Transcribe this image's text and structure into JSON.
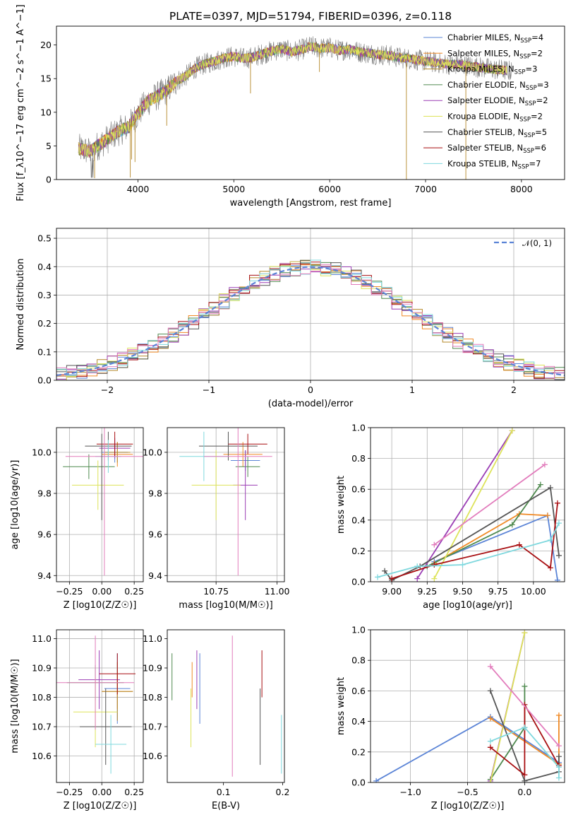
{
  "title": "PLATE=0397, MJD=51794, FIBERID=0396, z=0.118",
  "colors": {
    "chabrier_miles": "#5b84d6",
    "salpeter_miles": "#f08a26",
    "kroupa_miles": "#b5892a",
    "chabrier_elodie": "#4f8a4f",
    "salpeter_elodie": "#9b3fb5",
    "kroupa_elodie": "#dde35a",
    "chabrier_stelib": "#555555",
    "salpeter_stelib": "#a80f12",
    "kroupa_stelib": "#7fd8de",
    "pink": "#e27cbc",
    "spectrum_gray": "#777777",
    "dash": "#5b84d6"
  },
  "chart_data": [
    {
      "id": "spectrum",
      "type": "line",
      "xlabel": "wavelength [Angstrom, rest frame]",
      "ylabel": "Flux [f_λ10^−17 erg cm^−2 s^−1 A^−1]",
      "xlim": [
        3150,
        8450
      ],
      "ylim": [
        0,
        22.8
      ],
      "xticks": [
        4000,
        5000,
        6000,
        7000,
        8000
      ],
      "yticks": [
        0,
        5,
        10,
        15,
        20
      ],
      "grid": false,
      "legend": "top-right",
      "continuum": {
        "x": [
          3380,
          3500,
          3600,
          3700,
          3800,
          3900,
          4000,
          4100,
          4200,
          4300,
          4400,
          4500,
          4600,
          4700,
          4800,
          4900,
          5000,
          5100,
          5200,
          5300,
          5400,
          5500,
          5600,
          5700,
          5800,
          5900,
          6000,
          6100,
          6200,
          6300,
          6400,
          6500,
          6600,
          6700,
          6800,
          6900,
          7000,
          7100,
          7200,
          7300,
          7400,
          7500,
          7600,
          7700,
          7800,
          7900,
          8000,
          8100,
          8200
        ],
        "y": [
          4.6,
          4.2,
          5.2,
          6.2,
          7.2,
          7.8,
          9.8,
          11.6,
          12.4,
          13.2,
          14.6,
          15.4,
          16.6,
          17.2,
          17.6,
          18.1,
          18.3,
          18.0,
          18.2,
          18.7,
          19.1,
          19.4,
          19.0,
          19.3,
          19.8,
          19.5,
          19.6,
          19.2,
          19.4,
          19.0,
          18.8,
          18.6,
          18.5,
          18.2,
          18.0,
          17.8,
          17.6,
          17.4,
          17.2,
          17.1,
          17.0,
          16.8,
          16.6,
          16.4,
          16.3,
          16.1,
          15.9,
          15.8,
          15.5
        ]
      },
      "series": [
        {
          "name": "Chabrier MILES, N_SSP=4",
          "nssp": "4",
          "color_key": "chabrier_miles"
        },
        {
          "name": "Salpeter MILES, N_SSP=2",
          "nssp": "2",
          "color_key": "salpeter_miles"
        },
        {
          "name": "Kroupa MILES, N_SSP=3",
          "nssp": "3",
          "color_key": "kroupa_miles"
        },
        {
          "name": "Chabrier ELODIE, N_SSP=3",
          "nssp": "3",
          "color_key": "chabrier_elodie"
        },
        {
          "name": "Salpeter ELODIE, N_SSP=2",
          "nssp": "2",
          "color_key": "salpeter_elodie"
        },
        {
          "name": "Kroupa ELODIE, N_SSP=2",
          "nssp": "2",
          "color_key": "kroupa_elodie"
        },
        {
          "name": "Chabrier STELIB, N_SSP=5",
          "nssp": "5",
          "color_key": "chabrier_stelib"
        },
        {
          "name": "Salpeter STELIB, N_SSP=6",
          "nssp": "6",
          "color_key": "salpeter_stelib"
        },
        {
          "name": "Kroupa STELIB, N_SSP=7",
          "nssp": "7",
          "color_key": "kroupa_stelib"
        }
      ],
      "legend_labels": [
        {
          "prefix": "Chabrier MILES, N",
          "sub": "SSP",
          "suffix": "=4"
        },
        {
          "prefix": "Salpeter MILES, N",
          "sub": "SSP",
          "suffix": "=2"
        },
        {
          "prefix": "Kroupa MILES, N",
          "sub": "SSP",
          "suffix": "=3"
        },
        {
          "prefix": "Chabrier ELODIE, N",
          "sub": "SSP",
          "suffix": "=3"
        },
        {
          "prefix": "Salpeter ELODIE, N",
          "sub": "SSP",
          "suffix": "=2"
        },
        {
          "prefix": "Kroupa ELODIE, N",
          "sub": "SSP",
          "suffix": "=2"
        },
        {
          "prefix": "Chabrier STELIB, N",
          "sub": "SSP",
          "suffix": "=5"
        },
        {
          "prefix": "Salpeter STELIB, N",
          "sub": "SSP",
          "suffix": "=6"
        },
        {
          "prefix": "Kroupa STELIB, N",
          "sub": "SSP",
          "suffix": "=7"
        }
      ]
    },
    {
      "id": "residuals",
      "type": "line",
      "xlabel": "(data-model)/error",
      "ylabel": "Normed distribution",
      "xlim": [
        -2.5,
        2.5
      ],
      "ylim": [
        0,
        0.535
      ],
      "xticks": [
        -2,
        -1,
        0,
        1,
        2
      ],
      "xtick_labels": [
        "−2",
        "−1",
        "0",
        "1",
        "2"
      ],
      "yticks": [
        0.0,
        0.1,
        0.2,
        0.3,
        0.4,
        0.5
      ],
      "ytick_labels": [
        "0.0",
        "0.1",
        "0.2",
        "0.3",
        "0.4",
        "0.5"
      ],
      "grid": true,
      "legend": "top-right",
      "legend_label": "𝒩(0, 1)",
      "bin_width": 0.1
    },
    {
      "id": "age-vs-z",
      "type": "scatter",
      "xlabel": "Z [log10(Z/Z☉)]",
      "ylabel": "age [log10(age/yr)]",
      "xlim": [
        -0.35,
        0.32
      ],
      "ylim": [
        9.37,
        10.12
      ],
      "xticks": [
        -0.25,
        0.0,
        0.25
      ],
      "xtick_labels": [
        "−0.25",
        "0.00",
        "0.25"
      ],
      "yticks": [
        9.4,
        9.6,
        9.8,
        10.0
      ],
      "ytick_labels": [
        "9.4",
        "9.6",
        "9.8",
        "10.0"
      ],
      "grid": true,
      "points": [
        {
          "key": "chabrier_miles",
          "x": 0.1,
          "xerr": 0.1,
          "y": 10.0,
          "yerr": 0.05
        },
        {
          "key": "salpeter_miles",
          "x": 0.12,
          "xerr": 0.12,
          "y": 9.99,
          "yerr": 0.06
        },
        {
          "key": "kroupa_miles",
          "x": 0.12,
          "xerr": 0.1,
          "y": 10.0,
          "yerr": 0.05
        },
        {
          "key": "chabrier_elodie",
          "x": -0.1,
          "xerr": 0.2,
          "y": 9.93,
          "yerr": 0.06
        },
        {
          "key": "salpeter_elodie",
          "x": 0.1,
          "xerr": 0.12,
          "y": 10.02,
          "yerr": 0.05
        },
        {
          "key": "kroupa_elodie",
          "x": -0.03,
          "xerr": 0.2,
          "y": 9.84,
          "yerr": 0.12
        },
        {
          "key": "chabrier_stelib",
          "x": 0.05,
          "xerr": 0.18,
          "y": 10.03,
          "yerr": 0.07
        },
        {
          "key": "salpeter_stelib",
          "x": 0.1,
          "xerr": 0.14,
          "y": 10.04,
          "yerr": 0.06
        },
        {
          "key": "kroupa_stelib",
          "x": 0.05,
          "xerr": 0.1,
          "y": 9.98,
          "yerr": 0.08
        },
        {
          "key": "pink",
          "x": 0.02,
          "xerr": 0.3,
          "y": 9.98,
          "yerr": 0.58
        },
        {
          "key": "chabrier_stelib",
          "x": 0.0,
          "xerr": 0.0,
          "y": 9.88,
          "yerr": 0.21
        }
      ]
    },
    {
      "id": "age-vs-mass",
      "type": "scatter",
      "xlabel": "mass [log10(M/M☉)]",
      "ylabel": "",
      "xlim": [
        10.55,
        11.03
      ],
      "ylim": [
        9.37,
        10.12
      ],
      "xticks": [
        10.75,
        11.0
      ],
      "xtick_labels": [
        "10.75",
        "11.00"
      ],
      "yticks": [
        9.4,
        9.6,
        9.8,
        10.0
      ],
      "ytick_labels": [
        "9.4",
        "9.6",
        "9.8",
        "10.0"
      ],
      "grid": true,
      "points": [
        {
          "key": "chabrier_miles",
          "x": 10.87,
          "xerr": 0.06,
          "y": 9.96,
          "yerr": 0.05
        },
        {
          "key": "salpeter_miles",
          "x": 10.86,
          "xerr": 0.08,
          "y": 9.99,
          "yerr": 0.06
        },
        {
          "key": "chabrier_elodie",
          "x": 10.88,
          "xerr": 0.05,
          "y": 9.93,
          "yerr": 0.05
        },
        {
          "key": "salpeter_elodie",
          "x": 10.87,
          "xerr": 0.05,
          "y": 9.84,
          "yerr": 0.17
        },
        {
          "key": "kroupa_elodie",
          "x": 10.75,
          "xerr": 0.1,
          "y": 9.84,
          "yerr": 0.17
        },
        {
          "key": "chabrier_stelib",
          "x": 10.8,
          "xerr": 0.12,
          "y": 10.03,
          "yerr": 0.07
        },
        {
          "key": "salpeter_stelib",
          "x": 10.88,
          "xerr": 0.08,
          "y": 10.04,
          "yerr": 0.05
        },
        {
          "key": "kroupa_stelib",
          "x": 10.7,
          "xerr": 0.1,
          "y": 9.98,
          "yerr": 0.12
        },
        {
          "key": "pink",
          "x": 10.84,
          "xerr": 0.14,
          "y": 9.98,
          "yerr": 0.58
        }
      ]
    },
    {
      "id": "weight-vs-age",
      "type": "line",
      "xlabel": "age [log10(age/yr)]",
      "ylabel": "mass weight",
      "xlim": [
        8.85,
        10.22
      ],
      "ylim": [
        0,
        1.0
      ],
      "xticks": [
        9.0,
        9.25,
        9.5,
        9.75,
        10.0
      ],
      "xtick_labels": [
        "9.00",
        "9.25",
        "9.50",
        "9.75",
        "10.00"
      ],
      "yticks": [
        0.0,
        0.2,
        0.4,
        0.6,
        0.8,
        1.0
      ],
      "ytick_labels": [
        "0.0",
        "0.2",
        "0.4",
        "0.6",
        "0.8",
        "1.0"
      ],
      "grid": true,
      "series": [
        {
          "key": "chabrier_miles",
          "x": [
            9.3,
            10.1,
            10.17
          ],
          "y": [
            0.13,
            0.43,
            0.01
          ]
        },
        {
          "key": "salpeter_miles",
          "x": [
            9.3,
            9.9,
            10.1
          ],
          "y": [
            0.12,
            0.44,
            0.43
          ]
        },
        {
          "key": "chabrier_elodie",
          "x": [
            9.25,
            9.85,
            10.05
          ],
          "y": [
            0.1,
            0.37,
            0.63
          ]
        },
        {
          "key": "salpeter_elodie",
          "x": [
            9.18,
            9.85
          ],
          "y": [
            0.02,
            0.98
          ]
        },
        {
          "key": "kroupa_elodie",
          "x": [
            9.3,
            9.85
          ],
          "y": [
            0.02,
            0.98
          ]
        },
        {
          "key": "chabrier_stelib",
          "x": [
            8.95,
            9.0,
            9.2,
            10.12,
            10.18
          ],
          "y": [
            0.07,
            0.01,
            0.1,
            0.61,
            0.17
          ]
        },
        {
          "key": "salpeter_stelib",
          "x": [
            9.0,
            9.3,
            9.9,
            10.12,
            10.17
          ],
          "y": [
            0.02,
            0.11,
            0.24,
            0.09,
            0.51
          ]
        },
        {
          "key": "kroupa_stelib",
          "x": [
            8.9,
            9.18,
            9.5,
            10.12,
            10.18
          ],
          "y": [
            0.03,
            0.1,
            0.11,
            0.27,
            0.38
          ]
        },
        {
          "key": "pink",
          "x": [
            9.3,
            10.08
          ],
          "y": [
            0.24,
            0.76
          ]
        }
      ]
    },
    {
      "id": "mass-vs-z",
      "type": "scatter",
      "xlabel": "Z [log10(Z/Z☉)]",
      "ylabel": "mass [log10(M/M☉)]",
      "xlim": [
        -0.35,
        0.32
      ],
      "ylim": [
        10.51,
        11.03
      ],
      "xticks": [
        -0.25,
        0.0,
        0.25
      ],
      "xtick_labels": [
        "−0.25",
        "0.00",
        "0.25"
      ],
      "yticks": [
        10.6,
        10.7,
        10.8,
        10.9,
        11.0
      ],
      "ytick_labels": [
        "10.6",
        "10.7",
        "10.8",
        "10.9",
        "11.0"
      ],
      "grid": true,
      "points": [
        {
          "key": "chabrier_miles",
          "x": 0.12,
          "xerr": 0.1,
          "y": 10.83,
          "yerr": 0.12
        },
        {
          "key": "salpeter_miles",
          "x": 0.12,
          "xerr": 0.12,
          "y": 10.82,
          "yerr": 0.06
        },
        {
          "key": "kroupa_miles",
          "x": 0.12,
          "xerr": 0.12,
          "y": 10.82,
          "yerr": 0.1
        },
        {
          "key": "chabrier_elodie",
          "x": -0.05,
          "xerr": 0.22,
          "y": 10.85,
          "yerr": 0.06
        },
        {
          "key": "salpeter_elodie",
          "x": -0.02,
          "xerr": 0.16,
          "y": 10.86,
          "yerr": 0.1
        },
        {
          "key": "kroupa_elodie",
          "x": -0.05,
          "xerr": 0.17,
          "y": 10.75,
          "yerr": 0.12
        },
        {
          "key": "chabrier_stelib",
          "x": 0.03,
          "xerr": 0.2,
          "y": 10.7,
          "yerr": 0.13
        },
        {
          "key": "salpeter_stelib",
          "x": 0.12,
          "xerr": 0.14,
          "y": 10.88,
          "yerr": 0.07
        },
        {
          "key": "kroupa_stelib",
          "x": 0.07,
          "xerr": 0.12,
          "y": 10.64,
          "yerr": 0.1
        },
        {
          "key": "pink",
          "x": -0.05,
          "xerr": 0.3,
          "y": 10.85,
          "yerr": 0.16
        }
      ]
    },
    {
      "id": "mass-vs-ebv",
      "type": "scatter",
      "xlabel": "E(B-V)",
      "ylabel": "",
      "xlim": [
        0.005,
        0.203
      ],
      "ylim": [
        10.51,
        11.03
      ],
      "xticks": [
        0.1,
        0.2
      ],
      "xtick_labels": [
        "0.1",
        "0.2"
      ],
      "yticks": [
        10.6,
        10.7,
        10.8,
        10.9,
        11.0
      ],
      "ytick_labels": [
        "10.6",
        "10.7",
        "10.8",
        "10.9",
        "11.0"
      ],
      "grid": false,
      "points": [
        {
          "key": "chabrier_elodie",
          "x": 0.013,
          "xerr": 0,
          "y": 10.87,
          "yerr": 0.08
        },
        {
          "key": "kroupa_elodie",
          "x": 0.045,
          "xerr": 0,
          "y": 10.73,
          "yerr": 0.1
        },
        {
          "key": "salpeter_miles",
          "x": 0.047,
          "xerr": 0,
          "y": 10.86,
          "yerr": 0.06
        },
        {
          "key": "salpeter_elodie",
          "x": 0.055,
          "xerr": 0,
          "y": 10.86,
          "yerr": 0.1
        },
        {
          "key": "chabrier_miles",
          "x": 0.06,
          "xerr": 0,
          "y": 10.83,
          "yerr": 0.12
        },
        {
          "key": "pink",
          "x": 0.115,
          "xerr": 0,
          "y": 10.77,
          "yerr": 0.24
        },
        {
          "key": "chabrier_stelib",
          "x": 0.162,
          "xerr": 0,
          "y": 10.7,
          "yerr": 0.13
        },
        {
          "key": "salpeter_stelib",
          "x": 0.165,
          "xerr": 0,
          "y": 10.88,
          "yerr": 0.08
        },
        {
          "key": "kroupa_stelib",
          "x": 0.198,
          "xerr": 0,
          "y": 10.64,
          "yerr": 0.1
        }
      ]
    },
    {
      "id": "weight-vs-z",
      "type": "line",
      "xlabel": "Z [log10(Z/Z☉)]",
      "ylabel": "mass weight",
      "xlim": [
        -1.35,
        0.35
      ],
      "ylim": [
        0,
        1.0
      ],
      "xticks": [
        -1.0,
        -0.5,
        0.0
      ],
      "xtick_labels": [
        "−1.0",
        "−0.5",
        "0.0"
      ],
      "yticks": [
        0.0,
        0.2,
        0.4,
        0.6,
        0.8,
        1.0
      ],
      "ytick_labels": [
        "0.0",
        "0.2",
        "0.4",
        "0.6",
        "0.8",
        "1.0"
      ],
      "grid": true,
      "series": [
        {
          "key": "chabrier_miles",
          "x": [
            -1.3,
            -0.3,
            0.3
          ],
          "y": [
            0.01,
            0.43,
            0.13
          ]
        },
        {
          "key": "salpeter_miles",
          "x": [
            -0.3,
            0.3,
            0.3
          ],
          "y": [
            0.42,
            0.12,
            0.44
          ]
        },
        {
          "key": "chabrier_elodie",
          "x": [
            -0.3,
            0.0,
            0.0
          ],
          "y": [
            0.02,
            0.36,
            0.63
          ]
        },
        {
          "key": "salpeter_elodie",
          "x": [
            -0.3,
            0.0
          ],
          "y": [
            0.01,
            0.98
          ]
        },
        {
          "key": "kroupa_elodie",
          "x": [
            -0.3,
            0.0
          ],
          "y": [
            0.0,
            0.98
          ]
        },
        {
          "key": "chabrier_stelib",
          "x": [
            -0.3,
            0.0,
            0.3,
            0.3
          ],
          "y": [
            0.6,
            0.01,
            0.07,
            0.17
          ]
        },
        {
          "key": "salpeter_stelib",
          "x": [
            -0.3,
            0.0,
            0.0,
            0.3
          ],
          "y": [
            0.23,
            0.05,
            0.51,
            0.11
          ]
        },
        {
          "key": "kroupa_stelib",
          "x": [
            -0.3,
            0.0,
            0.3,
            0.3
          ],
          "y": [
            0.27,
            0.36,
            0.1,
            0.03
          ]
        },
        {
          "key": "pink",
          "x": [
            -0.3,
            0.3
          ],
          "y": [
            0.76,
            0.24
          ]
        }
      ]
    }
  ]
}
